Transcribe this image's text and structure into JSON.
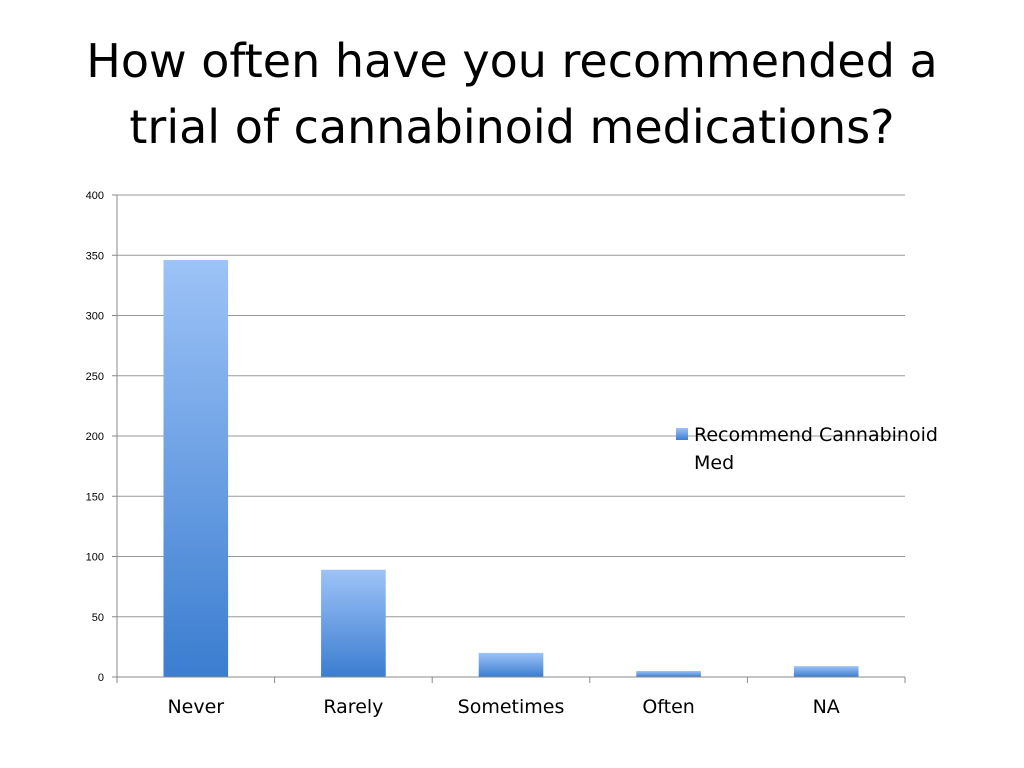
{
  "slide": {
    "title_line1": "How often have you recommended a",
    "title_line2": "trial of cannabinoid medications?"
  },
  "chart_data": {
    "type": "bar",
    "categories": [
      "Never",
      "Rarely",
      "Sometimes",
      "Often",
      "NA"
    ],
    "series": [
      {
        "name": "Recommend Cannabinoid Med",
        "values": [
          346,
          89,
          20,
          5,
          9
        ]
      }
    ],
    "legend_lines": [
      "Recommend Cannabinoid",
      "Med"
    ],
    "ylim": [
      0,
      400
    ],
    "yticks": [
      0,
      50,
      100,
      150,
      200,
      250,
      300,
      350,
      400
    ],
    "grid": true,
    "legend_position": "right",
    "colors": {
      "bar_top": "#9DC3F7",
      "bar_bottom": "#3B7DD0",
      "grid": "#999999",
      "axis": "#888888"
    }
  }
}
